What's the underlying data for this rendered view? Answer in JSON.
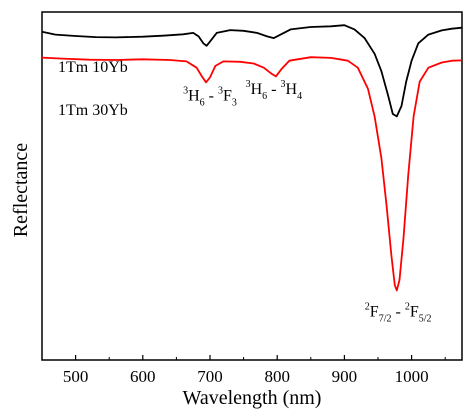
{
  "chart_data": {
    "type": "line",
    "xlabel": "Wavelength (nm)",
    "ylabel": "Reflectance",
    "xlim": [
      450,
      1075
    ],
    "ylim": [
      0,
      1
    ],
    "x_ticks": [
      500,
      600,
      700,
      800,
      900,
      1000
    ],
    "y_ticks_shown": false,
    "grid": false,
    "legend": "none",
    "series": [
      {
        "name": "1Tm 10Yb",
        "color": "#000000",
        "points": [
          [
            450,
            0.943
          ],
          [
            470,
            0.935
          ],
          [
            500,
            0.931
          ],
          [
            530,
            0.928
          ],
          [
            560,
            0.927
          ],
          [
            600,
            0.929
          ],
          [
            630,
            0.932
          ],
          [
            660,
            0.936
          ],
          [
            675,
            0.94
          ],
          [
            683,
            0.93
          ],
          [
            690,
            0.91
          ],
          [
            695,
            0.903
          ],
          [
            700,
            0.915
          ],
          [
            710,
            0.94
          ],
          [
            730,
            0.948
          ],
          [
            750,
            0.946
          ],
          [
            770,
            0.94
          ],
          [
            785,
            0.93
          ],
          [
            795,
            0.925
          ],
          [
            805,
            0.935
          ],
          [
            820,
            0.95
          ],
          [
            850,
            0.957
          ],
          [
            880,
            0.959
          ],
          [
            900,
            0.962
          ],
          [
            915,
            0.95
          ],
          [
            930,
            0.925
          ],
          [
            945,
            0.88
          ],
          [
            955,
            0.83
          ],
          [
            965,
            0.76
          ],
          [
            972,
            0.707
          ],
          [
            978,
            0.7
          ],
          [
            985,
            0.73
          ],
          [
            992,
            0.8
          ],
          [
            1000,
            0.86
          ],
          [
            1010,
            0.91
          ],
          [
            1025,
            0.935
          ],
          [
            1045,
            0.947
          ],
          [
            1060,
            0.952
          ],
          [
            1075,
            0.955
          ]
        ]
      },
      {
        "name": "1Tm 30Yb",
        "color": "#ff0000",
        "points": [
          [
            450,
            0.869
          ],
          [
            480,
            0.866
          ],
          [
            520,
            0.863
          ],
          [
            560,
            0.862
          ],
          [
            600,
            0.864
          ],
          [
            640,
            0.862
          ],
          [
            665,
            0.858
          ],
          [
            680,
            0.84
          ],
          [
            688,
            0.815
          ],
          [
            694,
            0.798
          ],
          [
            700,
            0.812
          ],
          [
            708,
            0.845
          ],
          [
            720,
            0.858
          ],
          [
            745,
            0.857
          ],
          [
            765,
            0.852
          ],
          [
            780,
            0.84
          ],
          [
            792,
            0.822
          ],
          [
            798,
            0.815
          ],
          [
            806,
            0.835
          ],
          [
            818,
            0.86
          ],
          [
            850,
            0.87
          ],
          [
            880,
            0.868
          ],
          [
            905,
            0.86
          ],
          [
            920,
            0.84
          ],
          [
            935,
            0.78
          ],
          [
            945,
            0.7
          ],
          [
            955,
            0.58
          ],
          [
            963,
            0.44
          ],
          [
            970,
            0.3
          ],
          [
            975,
            0.215
          ],
          [
            978,
            0.2
          ],
          [
            982,
            0.23
          ],
          [
            988,
            0.35
          ],
          [
            995,
            0.53
          ],
          [
            1003,
            0.7
          ],
          [
            1012,
            0.8
          ],
          [
            1025,
            0.84
          ],
          [
            1045,
            0.855
          ],
          [
            1060,
            0.86
          ],
          [
            1075,
            0.861
          ]
        ]
      }
    ],
    "annotations": [
      {
        "id": "a1",
        "base1": "3",
        "sym1": "H",
        "sub1": "6",
        "sep": " - ",
        "base2": "3",
        "sym2": "F",
        "sub2": "3",
        "x": 700,
        "y": 0.745
      },
      {
        "id": "a2",
        "base1": "3",
        "sym1": "H",
        "sub1": "6",
        "sep": " - ",
        "base2": "3",
        "sym2": "H",
        "sub2": "4",
        "x": 795,
        "y": 0.765
      },
      {
        "id": "a3",
        "base1": "2",
        "sym1": "F",
        "sub1": "7/2",
        "sep": " - ",
        "base2": "2",
        "sym2": "F",
        "sub2": "5/2",
        "x": 980,
        "y": 0.125
      }
    ]
  }
}
